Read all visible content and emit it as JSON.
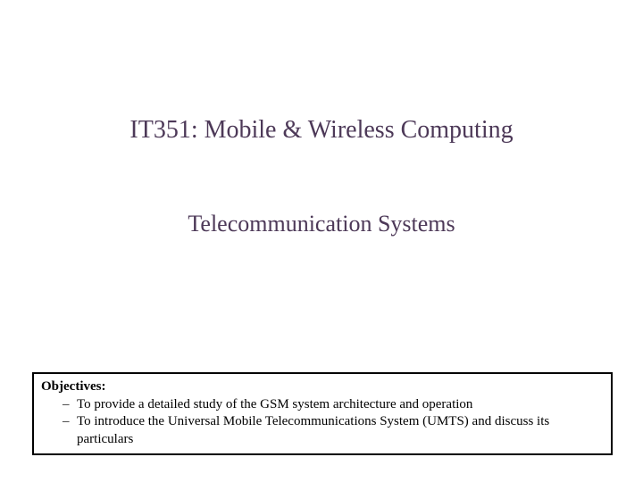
{
  "title": "IT351: Mobile & Wireless Computing",
  "subtitle": "Telecommunication Systems",
  "objectives": {
    "heading": "Objectives:",
    "items": [
      " To provide a detailed study of the GSM system architecture and operation",
      "To introduce the Universal Mobile Telecommunications System (UMTS) and discuss its particulars"
    ]
  },
  "colors": {
    "title_color": "#4d3958",
    "text_color": "#000000",
    "border_color": "#000000",
    "background": "#ffffff"
  },
  "typography": {
    "title_fontsize": 28,
    "subtitle_fontsize": 26,
    "body_fontsize": 15,
    "font_family": "Times New Roman"
  }
}
